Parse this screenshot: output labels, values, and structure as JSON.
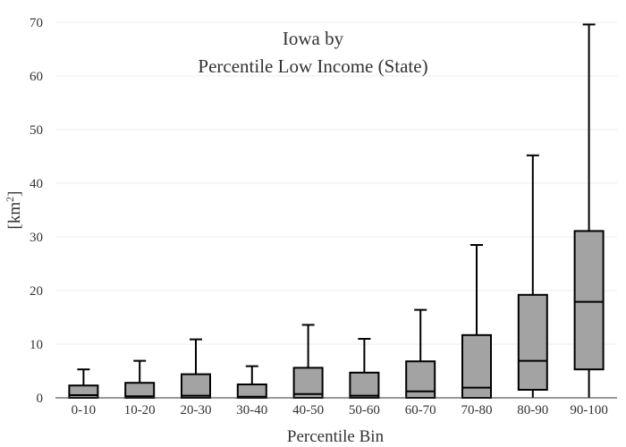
{
  "chart_data": {
    "type": "box",
    "title_line1": "Iowa  by",
    "title_line2": "Percentile Low Income (State)",
    "xlabel": "Percentile Bin",
    "ylabel_base": "[km",
    "ylabel_sup": "2",
    "ylabel_close": "]",
    "ylim": [
      0,
      70
    ],
    "yticks": [
      0,
      10,
      20,
      30,
      40,
      50,
      60,
      70
    ],
    "grid": true,
    "categories": [
      "0-10",
      "10-20",
      "20-30",
      "30-40",
      "40-50",
      "50-60",
      "60-70",
      "70-80",
      "80-90",
      "90-100"
    ],
    "boxes": [
      {
        "min": 0,
        "q1": 0,
        "median": 0.5,
        "q3": 2.3,
        "max": 5.3
      },
      {
        "min": 0,
        "q1": 0,
        "median": 0.3,
        "q3": 2.8,
        "max": 6.9
      },
      {
        "min": 0,
        "q1": 0,
        "median": 0.4,
        "q3": 4.4,
        "max": 10.9
      },
      {
        "min": 0,
        "q1": 0,
        "median": 0.2,
        "q3": 2.5,
        "max": 5.9
      },
      {
        "min": 0,
        "q1": 0,
        "median": 0.7,
        "q3": 5.6,
        "max": 13.6
      },
      {
        "min": 0,
        "q1": 0,
        "median": 0.4,
        "q3": 4.7,
        "max": 11.0
      },
      {
        "min": 0,
        "q1": 0,
        "median": 1.2,
        "q3": 6.8,
        "max": 16.4
      },
      {
        "min": 0,
        "q1": 0,
        "median": 1.9,
        "q3": 11.7,
        "max": 28.5
      },
      {
        "min": 0,
        "q1": 1.5,
        "median": 6.9,
        "q3": 19.2,
        "max": 45.2
      },
      {
        "min": 0,
        "q1": 5.3,
        "median": 17.9,
        "q3": 31.1,
        "max": 69.6
      }
    ]
  }
}
